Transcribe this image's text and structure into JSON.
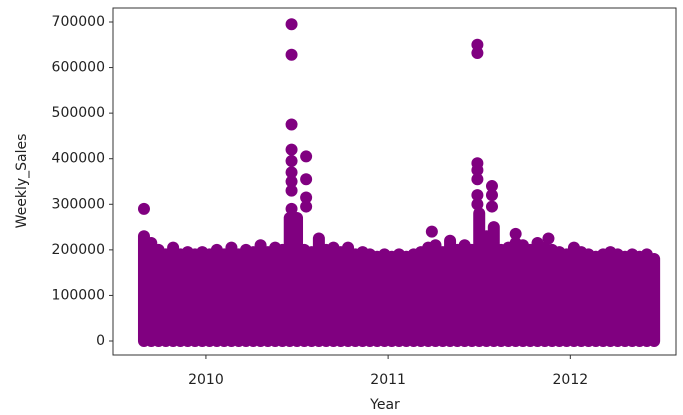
{
  "chart_data": {
    "type": "scatter",
    "x_label": "Year",
    "y_label": "Weekly_Sales",
    "xlim": [
      2009.49,
      2012.58
    ],
    "ylim": [
      -30700,
      730700
    ],
    "xticks": [
      2010,
      2011,
      2012
    ],
    "yticks": [
      0,
      100000,
      200000,
      300000,
      400000,
      500000,
      600000,
      700000
    ],
    "grid": false,
    "series": [
      {
        "color": "#800080",
        "x": [
          2009.66,
          2009.7,
          2009.74,
          2009.78,
          2009.82,
          2009.86,
          2009.9,
          2009.94,
          2009.98,
          2010.02,
          2010.06,
          2010.1,
          2010.14,
          2010.18,
          2010.22,
          2010.26,
          2010.3,
          2010.34,
          2010.38,
          2010.42,
          2010.46,
          2010.5,
          2010.54,
          2010.58,
          2010.62,
          2010.66,
          2010.7,
          2010.74,
          2010.78,
          2010.82,
          2010.86,
          2010.9,
          2010.94,
          2010.98,
          2011.02,
          2011.06,
          2011.1,
          2011.14,
          2011.18,
          2011.22,
          2011.26,
          2011.3,
          2011.34,
          2011.38,
          2011.42,
          2011.46,
          2011.5,
          2011.54,
          2011.58,
          2011.62,
          2011.66,
          2011.7,
          2011.74,
          2011.78,
          2011.82,
          2011.86,
          2011.9,
          2011.94,
          2011.98,
          2012.02,
          2012.06,
          2012.1,
          2012.14,
          2012.18,
          2012.22,
          2012.26,
          2012.3,
          2012.34,
          2012.38,
          2012.42,
          2012.46
        ],
        "values": [
          230000,
          215000,
          200000,
          190000,
          205000,
          190000,
          195000,
          190000,
          195000,
          190000,
          200000,
          190000,
          205000,
          190000,
          200000,
          195000,
          210000,
          195000,
          205000,
          200000,
          270000,
          270000,
          200000,
          195000,
          225000,
          200000,
          205000,
          195000,
          205000,
          190000,
          195000,
          190000,
          185000,
          190000,
          185000,
          190000,
          185000,
          190000,
          195000,
          205000,
          210000,
          195000,
          220000,
          200000,
          210000,
          200000,
          280000,
          230000,
          250000,
          200000,
          205000,
          215000,
          210000,
          200000,
          215000,
          205000,
          200000,
          195000,
          190000,
          205000,
          195000,
          190000,
          185000,
          190000,
          195000,
          190000,
          185000,
          190000,
          185000,
          190000,
          180000
        ]
      },
      {
        "color": "#800080",
        "x": [
          2009.66,
          2010.47,
          2010.47,
          2010.47,
          2010.47,
          2010.47,
          2010.47,
          2010.47,
          2010.47,
          2010.47,
          2010.55,
          2010.55,
          2010.55,
          2010.55,
          2011.24,
          2011.49,
          2011.49,
          2011.49,
          2011.49,
          2011.49,
          2011.49,
          2011.49,
          2011.57,
          2011.57,
          2011.57,
          2011.7,
          2011.88
        ],
        "values": [
          290000,
          695000,
          628000,
          475000,
          420000,
          395000,
          370000,
          350000,
          330000,
          290000,
          405000,
          355000,
          315000,
          295000,
          240000,
          650000,
          632000,
          390000,
          375000,
          355000,
          320000,
          300000,
          340000,
          320000,
          295000,
          235000,
          225000
        ]
      }
    ]
  }
}
